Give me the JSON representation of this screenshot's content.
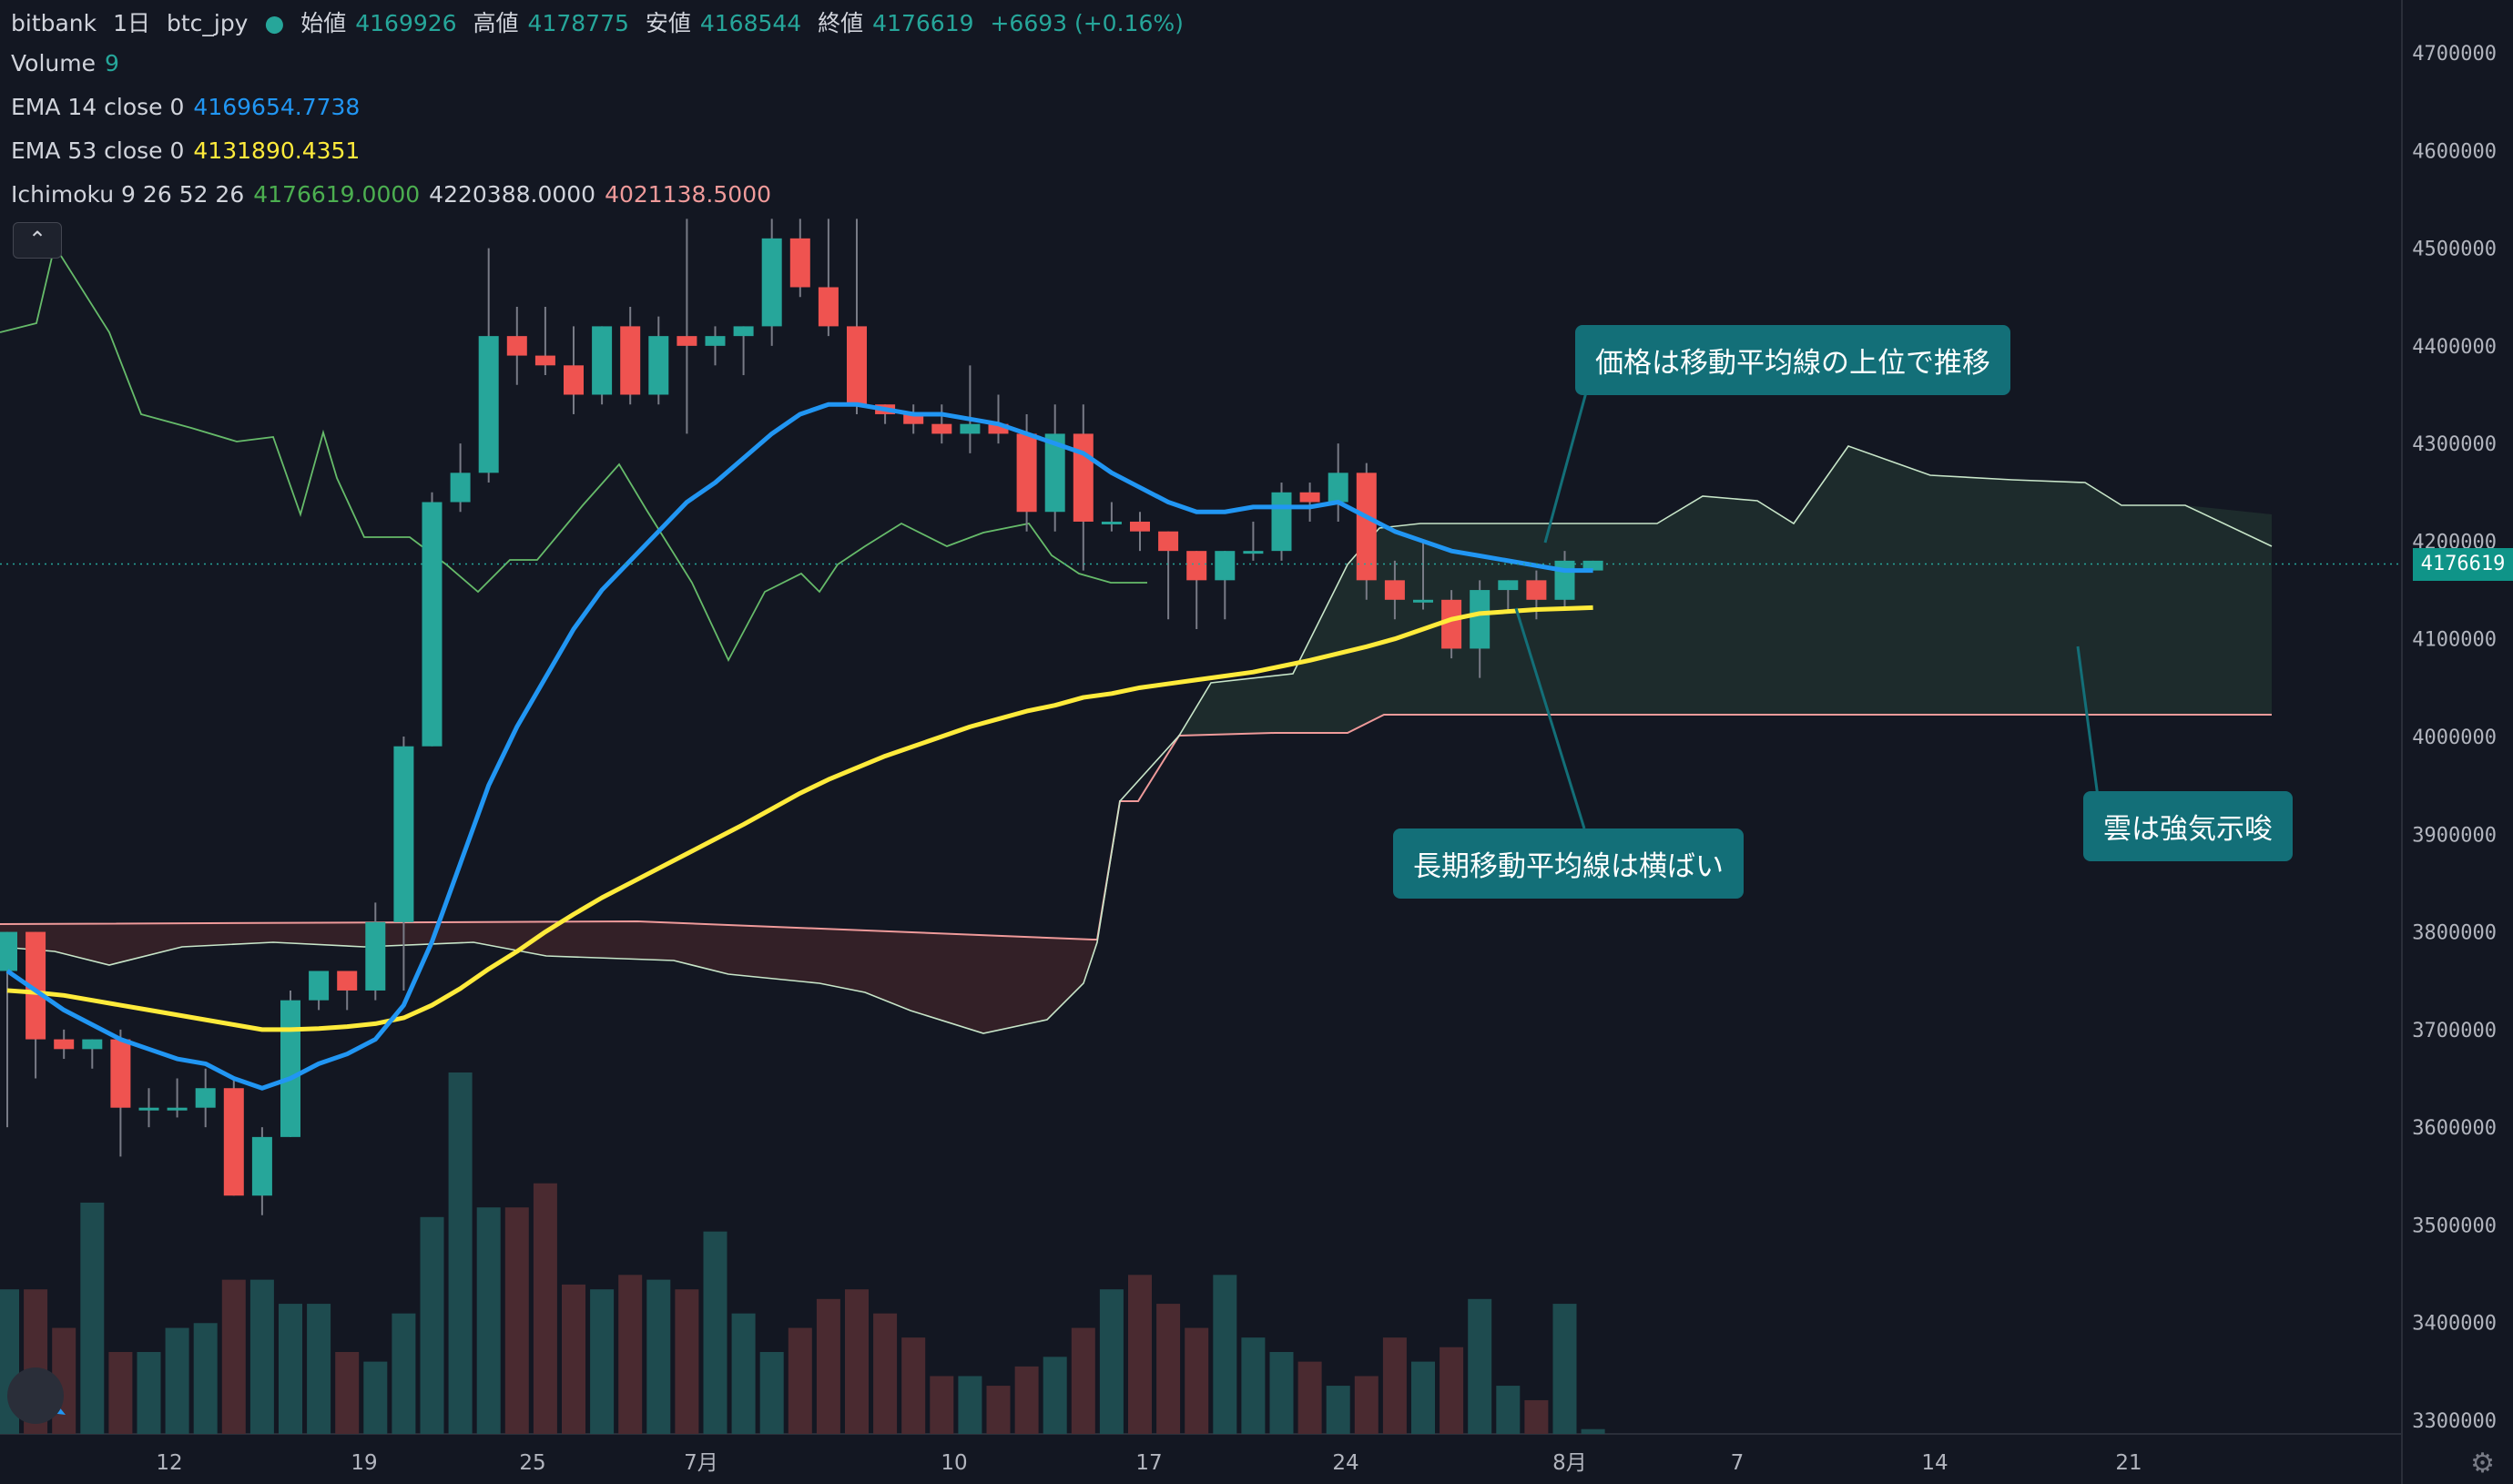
{
  "header": {
    "symbol_line": [
      "bitbank",
      "1日",
      "btc_jpy"
    ],
    "ohlc": [
      {
        "label": "始値",
        "value": "4169926"
      },
      {
        "label": "高値",
        "value": "4178775"
      },
      {
        "label": "安値",
        "value": "4168544"
      },
      {
        "label": "終値",
        "value": "4176619"
      }
    ],
    "change": "+6693 (+0.16%)"
  },
  "indicators": {
    "volume": {
      "label": "Volume",
      "value": "9"
    },
    "ema14": {
      "label": "EMA 14 close 0",
      "value": "4169654.7738",
      "color": "#2196f3"
    },
    "ema53": {
      "label": "EMA 53 close 0",
      "value": "4131890.4351",
      "color": "#ffeb3b"
    },
    "ichimoku": {
      "label": "Ichimoku 9 26 52 26",
      "values": [
        "4176619.0000",
        "4220388.0000",
        "4021138.5000"
      ],
      "colors": [
        "#4caf50",
        "#d1d4dc",
        "#ef9a9a"
      ]
    }
  },
  "annotations": {
    "price_above_ma": "価格は移動平均線の上位で推移",
    "long_ma_flat": "長期移動平均線は横ばい",
    "cloud_bullish": "雲は強気示唆"
  },
  "current_price_label": "4176619",
  "colors": {
    "up": "#26a69a",
    "down": "#ef5350",
    "background": "#131722",
    "cloud_bull": "#1f2e2d",
    "cloud_bear": "#3a2228"
  },
  "chart_data": {
    "type": "candlestick",
    "y_ticks": [
      3300000,
      3400000,
      3500000,
      3600000,
      3700000,
      3800000,
      3900000,
      4000000,
      4100000,
      4200000,
      4300000,
      4400000,
      4500000,
      4600000,
      4700000
    ],
    "x_ticks": [
      "12",
      "19",
      "25",
      "7月",
      "10",
      "17",
      "24",
      "8月",
      "7",
      "14",
      "21"
    ],
    "candles": [
      [
        3760000,
        3800000,
        3600000,
        3800000
      ],
      [
        3800000,
        3800000,
        3650000,
        3690000
      ],
      [
        3690000,
        3700000,
        3670000,
        3680000
      ],
      [
        3680000,
        3690000,
        3660000,
        3690000
      ],
      [
        3690000,
        3700000,
        3570000,
        3620000
      ],
      [
        3620000,
        3640000,
        3600000,
        3620000
      ],
      [
        3620000,
        3650000,
        3610000,
        3620000
      ],
      [
        3620000,
        3660000,
        3600000,
        3640000
      ],
      [
        3640000,
        3650000,
        3530000,
        3530000
      ],
      [
        3530000,
        3600000,
        3510000,
        3590000
      ],
      [
        3590000,
        3740000,
        3590000,
        3730000
      ],
      [
        3730000,
        3760000,
        3720000,
        3760000
      ],
      [
        3760000,
        3760000,
        3720000,
        3740000
      ],
      [
        3740000,
        3830000,
        3730000,
        3810000
      ],
      [
        3810000,
        4000000,
        3740000,
        3990000
      ],
      [
        3990000,
        4250000,
        3990000,
        4240000
      ],
      [
        4240000,
        4300000,
        4230000,
        4270000
      ],
      [
        4270000,
        4500000,
        4260000,
        4410000
      ],
      [
        4410000,
        4440000,
        4360000,
        4390000
      ],
      [
        4390000,
        4440000,
        4370000,
        4380000
      ],
      [
        4380000,
        4420000,
        4330000,
        4350000
      ],
      [
        4350000,
        4420000,
        4340000,
        4420000
      ],
      [
        4420000,
        4440000,
        4340000,
        4350000
      ],
      [
        4350000,
        4430000,
        4340000,
        4410000
      ],
      [
        4410000,
        4530000,
        4310000,
        4400000
      ],
      [
        4400000,
        4420000,
        4380000,
        4410000
      ],
      [
        4410000,
        4420000,
        4370000,
        4420000
      ],
      [
        4420000,
        4530000,
        4400000,
        4510000
      ],
      [
        4510000,
        4530000,
        4450000,
        4460000
      ],
      [
        4460000,
        4530000,
        4410000,
        4420000
      ],
      [
        4420000,
        4530000,
        4330000,
        4340000
      ],
      [
        4340000,
        4340000,
        4320000,
        4330000
      ],
      [
        4330000,
        4340000,
        4310000,
        4320000
      ],
      [
        4320000,
        4340000,
        4300000,
        4310000
      ],
      [
        4310000,
        4380000,
        4290000,
        4320000
      ],
      [
        4320000,
        4350000,
        4300000,
        4310000
      ],
      [
        4310000,
        4330000,
        4210000,
        4230000
      ],
      [
        4230000,
        4340000,
        4210000,
        4310000
      ],
      [
        4310000,
        4340000,
        4170000,
        4220000
      ],
      [
        4220000,
        4240000,
        4210000,
        4220000
      ],
      [
        4220000,
        4230000,
        4190000,
        4210000
      ],
      [
        4210000,
        4210000,
        4120000,
        4190000
      ],
      [
        4190000,
        4190000,
        4110000,
        4160000
      ],
      [
        4160000,
        4190000,
        4120000,
        4190000
      ],
      [
        4190000,
        4220000,
        4180000,
        4190000
      ],
      [
        4190000,
        4260000,
        4180000,
        4250000
      ],
      [
        4250000,
        4260000,
        4220000,
        4240000
      ],
      [
        4240000,
        4300000,
        4220000,
        4270000
      ],
      [
        4270000,
        4280000,
        4140000,
        4160000
      ],
      [
        4160000,
        4180000,
        4120000,
        4140000
      ],
      [
        4140000,
        4200000,
        4130000,
        4140000
      ],
      [
        4140000,
        4150000,
        4080000,
        4090000
      ],
      [
        4090000,
        4160000,
        4060000,
        4150000
      ],
      [
        4150000,
        4160000,
        4130000,
        4160000
      ],
      [
        4160000,
        4170000,
        4120000,
        4140000
      ],
      [
        4140000,
        4190000,
        4130000,
        4180000
      ],
      [
        4170000,
        4180000,
        4170000,
        4180000
      ]
    ],
    "volume": [
      30,
      30,
      22,
      48,
      17,
      17,
      22,
      23,
      32,
      32,
      27,
      27,
      17,
      15,
      25,
      45,
      75,
      47,
      47,
      52,
      31,
      30,
      33,
      32,
      30,
      42,
      25,
      17,
      22,
      28,
      30,
      25,
      20,
      12,
      12,
      10,
      14,
      16,
      22,
      30,
      33,
      27,
      22,
      33,
      20,
      17,
      15,
      10,
      12,
      20,
      15,
      18,
      28,
      10,
      7,
      27,
      1
    ],
    "ema14": [
      3760000,
      3740000,
      3720000,
      3705000,
      3690000,
      3680000,
      3670000,
      3665000,
      3650000,
      3640000,
      3650000,
      3665000,
      3675000,
      3690000,
      3725000,
      3790000,
      3870000,
      3950000,
      4010000,
      4060000,
      4110000,
      4150000,
      4180000,
      4210000,
      4240000,
      4260000,
      4285000,
      4310000,
      4330000,
      4340000,
      4340000,
      4335000,
      4330000,
      4330000,
      4325000,
      4320000,
      4310000,
      4300000,
      4290000,
      4270000,
      4255000,
      4240000,
      4230000,
      4230000,
      4235000,
      4235000,
      4235000,
      4240000,
      4225000,
      4210000,
      4200000,
      4190000,
      4185000,
      4180000,
      4175000,
      4170000,
      4170000
    ],
    "ema53": [
      3740000,
      3738000,
      3735000,
      3730000,
      3725000,
      3720000,
      3715000,
      3710000,
      3705000,
      3700000,
      3700000,
      3701000,
      3703000,
      3706000,
      3712000,
      3725000,
      3742000,
      3762000,
      3780000,
      3800000,
      3818000,
      3835000,
      3850000,
      3865000,
      3880000,
      3895000,
      3910000,
      3926000,
      3942000,
      3956000,
      3968000,
      3980000,
      3990000,
      4000000,
      4010000,
      4018000,
      4026000,
      4032000,
      4040000,
      4044000,
      4050000,
      4054000,
      4058000,
      4062000,
      4066000,
      4072000,
      4078000,
      4085000,
      4092000,
      4100000,
      4110000,
      4120000,
      4126000,
      4128000,
      4130000,
      4131000,
      4132000
    ]
  }
}
